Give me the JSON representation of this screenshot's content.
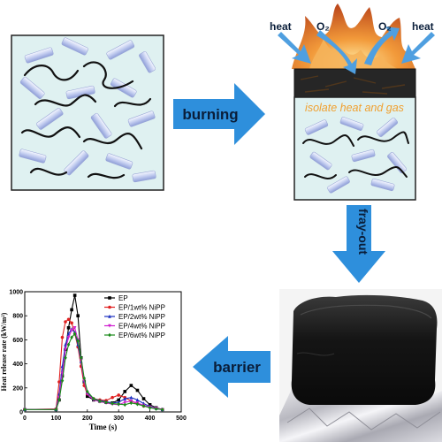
{
  "labels": {
    "burning": "burning",
    "fray_out": "fray-out",
    "barrier": "barrier",
    "heat": "heat",
    "o2": "O₂",
    "isolate": "isolate heat and gas"
  },
  "colors": {
    "arrow_blue": "#2e8fdc",
    "panel_bg": "#dff1f1",
    "flame_orange": "#e8782a",
    "char_dark": "#222222",
    "isolate_text": "#f0a030"
  },
  "chart_data": {
    "type": "line",
    "xlabel": "Time (s)",
    "ylabel": "Heat release rate (kW/m²)",
    "xlim": [
      0,
      500
    ],
    "ylim": [
      0,
      1000
    ],
    "xticks": [
      0,
      100,
      200,
      300,
      400,
      500
    ],
    "yticks": [
      0,
      200,
      400,
      600,
      800,
      1000
    ],
    "legend_position": "top-right",
    "series": [
      {
        "name": "EP",
        "color": "#000000",
        "marker": "square",
        "x": [
          0,
          100,
          110,
          120,
          130,
          140,
          150,
          160,
          170,
          180,
          190,
          200,
          220,
          240,
          260,
          280,
          300,
          320,
          340,
          360,
          380,
          400,
          420,
          440
        ],
        "y": [
          20,
          20,
          100,
          300,
          520,
          700,
          850,
          970,
          800,
          450,
          250,
          130,
          100,
          90,
          80,
          75,
          100,
          170,
          220,
          180,
          110,
          60,
          35,
          20
        ]
      },
      {
        "name": "EP/1wt% NiPP",
        "color": "#e02020",
        "marker": "circle",
        "x": [
          0,
          100,
          110,
          120,
          130,
          140,
          150,
          160,
          170,
          180,
          190,
          200,
          220,
          240,
          260,
          280,
          300,
          320,
          340,
          360,
          380,
          400,
          420,
          440
        ],
        "y": [
          20,
          25,
          250,
          620,
          750,
          770,
          740,
          650,
          540,
          380,
          220,
          150,
          110,
          100,
          95,
          120,
          140,
          120,
          90,
          70,
          50,
          40,
          30,
          20
        ]
      },
      {
        "name": "EP/2wt% NiPP",
        "color": "#1a2fc0",
        "marker": "triangle",
        "x": [
          0,
          100,
          110,
          120,
          130,
          140,
          150,
          160,
          170,
          180,
          190,
          200,
          220,
          240,
          260,
          280,
          300,
          320,
          340,
          360,
          380,
          400,
          420,
          440
        ],
        "y": [
          20,
          20,
          150,
          380,
          560,
          650,
          690,
          660,
          560,
          420,
          260,
          160,
          110,
          95,
          85,
          75,
          80,
          110,
          120,
          100,
          70,
          45,
          30,
          20
        ]
      },
      {
        "name": "EP/4wt% NiPP",
        "color": "#d020d0",
        "marker": "triangle-down",
        "x": [
          0,
          100,
          110,
          120,
          130,
          140,
          150,
          160,
          170,
          180,
          190,
          200,
          220,
          240,
          260,
          280,
          300,
          320,
          340,
          360,
          380,
          400,
          420,
          440
        ],
        "y": [
          20,
          20,
          120,
          320,
          520,
          620,
          680,
          700,
          600,
          430,
          260,
          150,
          100,
          85,
          75,
          65,
          60,
          80,
          90,
          75,
          55,
          40,
          30,
          20
        ]
      },
      {
        "name": "EP/6wt% NiPP",
        "color": "#1a8a1a",
        "marker": "diamond",
        "x": [
          0,
          100,
          110,
          120,
          130,
          140,
          150,
          160,
          170,
          180,
          190,
          200,
          220,
          240,
          260,
          280,
          300,
          320,
          340,
          360,
          380,
          400,
          420,
          440
        ],
        "y": [
          20,
          20,
          100,
          260,
          450,
          560,
          620,
          650,
          590,
          450,
          280,
          170,
          110,
          90,
          80,
          70,
          65,
          60,
          75,
          65,
          50,
          35,
          25,
          20
        ]
      }
    ]
  }
}
